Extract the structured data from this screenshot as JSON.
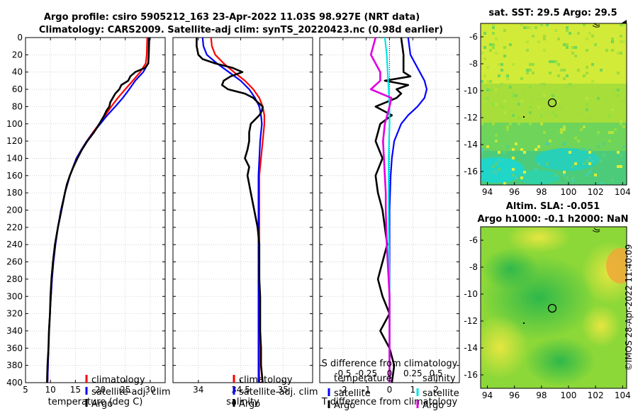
{
  "title": {
    "line1": "Argo profile: csiro 5905212_163 23-Apr-2022 11.03S 98.927E (NRT data)",
    "line2": "Climatology: CARS2009. Satellite-adj clim: synTS_20220423.nc (0.98d earlier)"
  },
  "stamp": "©IMOS 28-Apr-2022 11:40:09",
  "depth_ticks": [
    0,
    20,
    40,
    60,
    80,
    100,
    120,
    140,
    160,
    180,
    200,
    220,
    240,
    260,
    280,
    300,
    320,
    340,
    360,
    380,
    400
  ],
  "colors": {
    "climatology": "#ff0000",
    "satellite": "#0000ff",
    "argo": "#000000",
    "cyan": "#00e5e5",
    "magenta": "#e000e0"
  },
  "chart_data": [
    {
      "type": "line",
      "name": "temperature",
      "xlabel": "temperature (deg C)",
      "xlim": [
        5,
        33
      ],
      "ylim": [
        400,
        0
      ],
      "xticks": [
        5,
        10,
        15,
        20,
        25,
        30
      ],
      "legend": {
        "placement": "center-right",
        "entries": [
          "climatology",
          "satellite-adj. clim",
          "Argo"
        ]
      },
      "series": [
        {
          "name": "climatology",
          "depth": [
            0,
            20,
            30,
            40,
            50,
            60,
            70,
            80,
            90,
            100,
            110,
            120,
            130,
            140,
            160,
            180,
            200,
            220,
            240,
            260,
            280,
            300,
            320,
            340,
            360,
            380,
            400
          ],
          "values": [
            29.4,
            29.3,
            29.1,
            28.0,
            26.5,
            25.0,
            23.5,
            22.2,
            21.0,
            19.8,
            18.5,
            17.3,
            16.2,
            15.2,
            13.9,
            12.9,
            12.1,
            11.5,
            11.0,
            10.6,
            10.3,
            10.1,
            9.9,
            9.7,
            9.6,
            9.5,
            9.4
          ]
        },
        {
          "name": "satellite-adj. clim",
          "depth": [
            0,
            20,
            30,
            40,
            50,
            60,
            70,
            80,
            90,
            100,
            110,
            120,
            130,
            140,
            160,
            180,
            200,
            220,
            240,
            260,
            280,
            300,
            320,
            340,
            360,
            380,
            400
          ],
          "values": [
            29.7,
            29.7,
            29.6,
            28.6,
            27.0,
            25.8,
            24.5,
            23.0,
            21.4,
            20.0,
            18.6,
            17.3,
            16.2,
            15.2,
            13.9,
            12.9,
            12.1,
            11.5,
            11.0,
            10.6,
            10.3,
            10.1,
            9.9,
            9.7,
            9.6,
            9.5,
            9.4
          ]
        },
        {
          "name": "Argo",
          "depth": [
            0,
            20,
            30,
            35,
            40,
            45,
            50,
            55,
            60,
            65,
            70,
            75,
            80,
            85,
            90,
            100,
            110,
            120,
            130,
            140,
            150,
            160,
            170,
            180,
            200,
            220,
            240,
            260,
            280,
            300,
            320,
            340,
            360,
            380,
            400
          ],
          "values": [
            29.8,
            29.7,
            29.6,
            29.0,
            27.0,
            26.0,
            25.6,
            24.2,
            23.8,
            23.0,
            22.5,
            22.0,
            21.8,
            21.2,
            20.8,
            19.8,
            18.7,
            17.4,
            16.3,
            15.4,
            14.6,
            13.9,
            13.3,
            12.9,
            12.2,
            11.5,
            10.9,
            10.5,
            10.2,
            10.0,
            9.9,
            9.7,
            9.6,
            9.4,
            9.3
          ]
        }
      ]
    },
    {
      "type": "line",
      "name": "salinity",
      "xlabel": "salinity",
      "xlim": [
        33.7,
        35.35
      ],
      "ylim": [
        400,
        0
      ],
      "xticks": [
        34,
        34.5,
        35
      ],
      "xticklabels": [
        "34",
        "34.5",
        "35"
      ],
      "legend": {
        "placement": "center-right",
        "entries": [
          "climatology",
          "satellite-adj. clim",
          "Argo"
        ]
      },
      "series": [
        {
          "name": "climatology",
          "depth": [
            0,
            10,
            20,
            30,
            40,
            50,
            60,
            70,
            80,
            90,
            100,
            110,
            120,
            140,
            160,
            180,
            200,
            220,
            240,
            260,
            280,
            300,
            320,
            340,
            360,
            380,
            400
          ],
          "values": [
            34.15,
            34.16,
            34.2,
            34.3,
            34.42,
            34.55,
            34.65,
            34.72,
            34.76,
            34.78,
            34.78,
            34.77,
            34.76,
            34.74,
            34.72,
            34.72,
            34.72,
            34.72,
            34.72,
            34.72,
            34.72,
            34.72,
            34.72,
            34.72,
            34.72,
            34.72,
            34.72
          ]
        },
        {
          "name": "satellite-adj. clim",
          "depth": [
            0,
            10,
            20,
            30,
            40,
            50,
            60,
            70,
            80,
            90,
            100,
            110,
            120,
            140,
            160,
            180,
            200,
            220,
            240,
            260,
            280,
            300,
            320,
            340,
            360,
            380,
            400
          ],
          "values": [
            34.05,
            34.06,
            34.1,
            34.22,
            34.36,
            34.5,
            34.6,
            34.67,
            34.72,
            34.74,
            34.75,
            34.74,
            34.73,
            34.72,
            34.71,
            34.71,
            34.71,
            34.71,
            34.71,
            34.71,
            34.71,
            34.71,
            34.71,
            34.71,
            34.71,
            34.71,
            34.71
          ]
        },
        {
          "name": "Argo",
          "depth": [
            0,
            10,
            20,
            25,
            30,
            35,
            40,
            45,
            50,
            55,
            60,
            65,
            70,
            75,
            80,
            85,
            90,
            100,
            110,
            120,
            130,
            140,
            150,
            160,
            170,
            180,
            200,
            220,
            240,
            260,
            280,
            300,
            320,
            340,
            360,
            380,
            400
          ],
          "values": [
            33.98,
            33.98,
            34.0,
            34.05,
            34.2,
            34.4,
            34.52,
            34.38,
            34.3,
            34.28,
            34.35,
            34.55,
            34.65,
            34.7,
            34.76,
            34.75,
            34.72,
            34.62,
            34.6,
            34.6,
            34.58,
            34.55,
            34.6,
            34.58,
            34.6,
            34.62,
            34.66,
            34.7,
            34.72,
            34.72,
            34.72,
            34.73,
            34.73,
            34.73,
            34.74,
            34.74,
            34.76
          ]
        }
      ]
    },
    {
      "type": "line",
      "name": "differences",
      "xlabel": "T difference from climatology",
      "xlim": [
        -3,
        3
      ],
      "ylim": [
        400,
        0
      ],
      "xticks": [
        -2,
        -1,
        0,
        1,
        2
      ],
      "top_axis": {
        "label": "S difference from climatology",
        "ticks": [
          -0.5,
          -0.25,
          0,
          0.25,
          0.5
        ],
        "ticklabels": [
          "-0.5",
          "-0.25",
          "0",
          "0.25",
          "0.5"
        ]
      },
      "legend": {
        "placement": "center",
        "temperature_entries": [
          "satellite",
          "Argo"
        ],
        "salinity_entries": [
          "satellite",
          "Argo"
        ],
        "temperature_title": "temperature",
        "salinity_title": "salinity"
      },
      "series": [
        {
          "name": "T satellite",
          "depth": [
            0,
            20,
            30,
            40,
            50,
            60,
            70,
            80,
            90,
            100,
            120,
            140,
            160,
            200,
            300,
            400
          ],
          "values": [
            0.8,
            0.9,
            1.1,
            1.3,
            1.5,
            1.6,
            1.5,
            1.2,
            0.8,
            0.5,
            0.2,
            0.1,
            0.05,
            0.0,
            0.0,
            0.0
          ]
        },
        {
          "name": "T Argo",
          "depth": [
            0,
            20,
            40,
            45,
            50,
            55,
            60,
            65,
            70,
            80,
            90,
            100,
            120,
            140,
            160,
            180,
            200,
            220,
            240,
            260,
            280,
            300,
            320,
            340,
            360,
            380,
            400
          ],
          "values": [
            0.5,
            0.6,
            0.6,
            0.9,
            -0.2,
            0.8,
            0.3,
            0.5,
            0.3,
            -0.6,
            0.1,
            -0.4,
            -0.6,
            -0.3,
            -0.6,
            -0.5,
            -0.3,
            -0.2,
            -0.1,
            -0.3,
            -0.5,
            -0.3,
            0.0,
            -0.4,
            0.0,
            0.2,
            0.1
          ]
        },
        {
          "name": "S satellite",
          "depth": [
            0,
            20,
            40,
            60,
            80,
            100,
            140,
            200,
            300,
            400
          ],
          "values": [
            -0.05,
            -0.03,
            -0.02,
            -0.01,
            0.0,
            0.0,
            -0.01,
            -0.01,
            0.0,
            0.0
          ]
        },
        {
          "name": "S Argo",
          "depth": [
            0,
            20,
            30,
            40,
            50,
            60,
            70,
            80,
            100,
            120,
            140,
            160,
            180,
            200,
            240,
            300,
            400
          ],
          "values": [
            -0.15,
            -0.2,
            -0.15,
            -0.1,
            -0.1,
            -0.2,
            0.02,
            0.0,
            -0.05,
            -0.07,
            -0.06,
            -0.05,
            -0.04,
            -0.04,
            -0.03,
            0.0,
            0.0
          ]
        }
      ]
    },
    {
      "type": "heatmap",
      "name": "sst-map",
      "title": "sat. SST: 29.5 Argo: 29.5",
      "xticks": [
        94,
        96,
        98,
        100,
        102,
        104
      ],
      "yticks": [
        -6,
        -8,
        -10,
        -12,
        -14,
        -16
      ],
      "xlim": [
        93.5,
        104.3
      ],
      "ylim": [
        -17,
        -5
      ],
      "marker": {
        "lon": 98.927,
        "lat": -11.03
      }
    },
    {
      "type": "heatmap",
      "name": "sla-map",
      "title_line1": "Altim. SLA: -0.051",
      "title_line2": "Argo h1000: -0.1 h2000: NaN",
      "xticks": [
        94,
        96,
        98,
        100,
        102,
        104
      ],
      "yticks": [
        -6,
        -8,
        -10,
        -12,
        -14,
        -16
      ],
      "xlim": [
        93.5,
        104.3
      ],
      "ylim": [
        -17,
        -5
      ],
      "marker": {
        "lon": 98.927,
        "lat": -11.03
      }
    }
  ]
}
